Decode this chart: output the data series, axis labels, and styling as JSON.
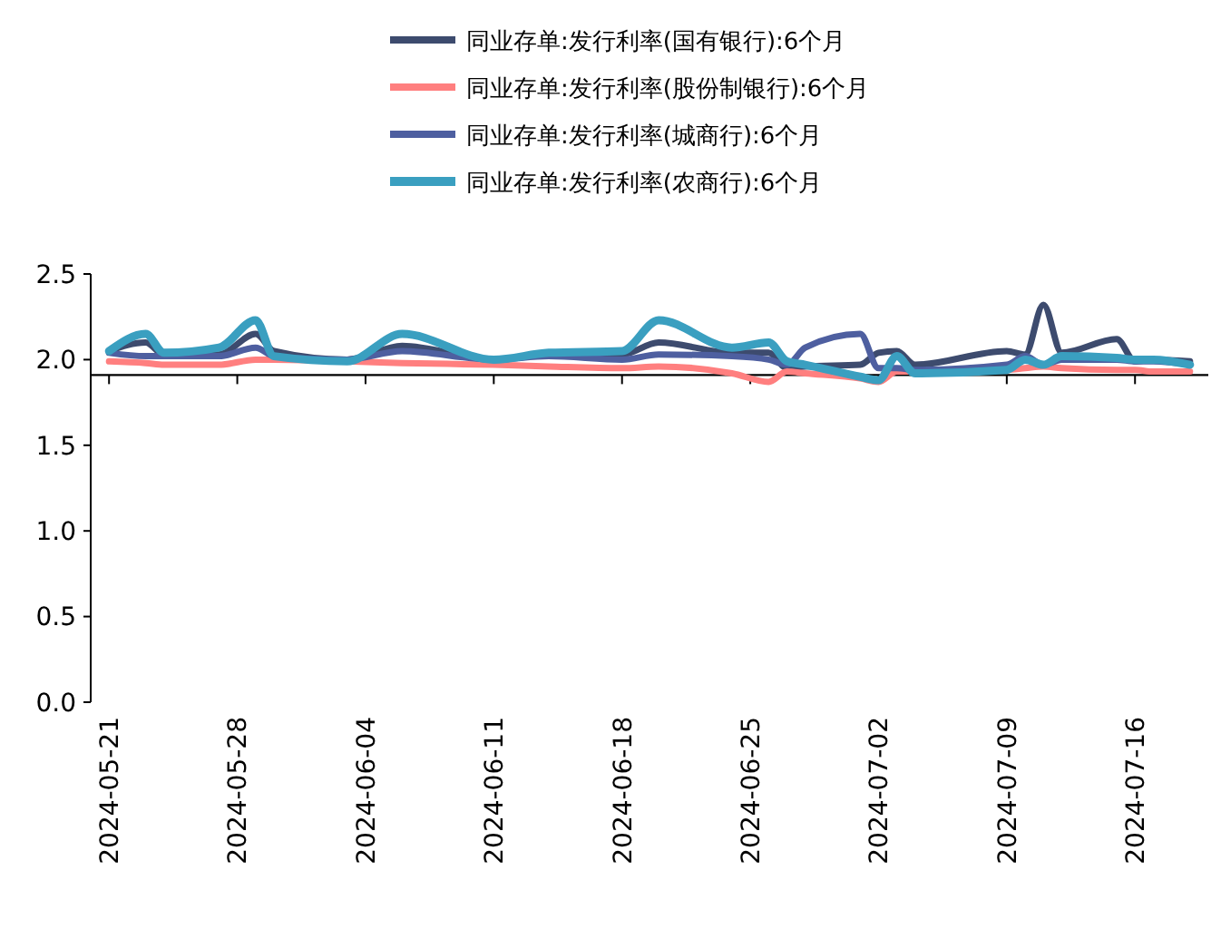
{
  "chart_data": {
    "type": "line",
    "x": [
      "2024-05-21",
      "2024-05-23",
      "2024-05-24",
      "2024-05-27",
      "2024-05-29",
      "2024-05-30",
      "2024-06-03",
      "2024-06-06",
      "2024-06-11",
      "2024-06-14",
      "2024-06-18",
      "2024-06-20",
      "2024-06-24",
      "2024-06-26",
      "2024-06-27",
      "2024-06-28",
      "2024-07-01",
      "2024-07-02",
      "2024-07-03",
      "2024-07-04",
      "2024-07-09",
      "2024-07-10",
      "2024-07-11",
      "2024-07-12",
      "2024-07-15",
      "2024-07-16",
      "2024-07-17",
      "2024-07-19"
    ],
    "series": [
      {
        "name": "同业存单:发行利率(国有银行):6个月",
        "color": "#3d4b6e",
        "values": [
          2.05,
          2.1,
          2.03,
          2.03,
          2.15,
          2.05,
          2.0,
          2.08,
          2.0,
          2.03,
          2.03,
          2.1,
          2.04,
          2.04,
          1.95,
          1.96,
          1.97,
          2.04,
          2.05,
          1.97,
          2.05,
          2.03,
          2.32,
          2.04,
          2.12,
          1.99,
          2.0,
          1.99
        ]
      },
      {
        "name": "同业存单:发行利率(股份制银行):6个月",
        "color": "#ff7f7f",
        "values": [
          1.99,
          1.98,
          1.97,
          1.97,
          2.0,
          2.0,
          1.99,
          1.98,
          1.97,
          1.96,
          1.95,
          1.96,
          1.92,
          1.87,
          1.93,
          1.92,
          1.89,
          1.87,
          1.93,
          1.93,
          1.94,
          1.95,
          1.96,
          1.95,
          1.94,
          1.94,
          1.93,
          1.93
        ]
      },
      {
        "name": "同业存单:发行利率(城商行):6个月",
        "color": "#4e5fa0",
        "values": [
          2.04,
          2.02,
          2.02,
          2.02,
          2.07,
          2.02,
          2.0,
          2.05,
          2.0,
          2.02,
          2.0,
          2.03,
          2.02,
          2.0,
          1.97,
          2.07,
          2.15,
          1.95,
          1.95,
          1.94,
          1.97,
          2.02,
          1.97,
          2.0,
          2.0,
          1.99,
          1.99,
          1.97
        ]
      },
      {
        "name": "同业存单:发行利率(农商行):6个月",
        "color": "#3a9fc0",
        "values": [
          2.05,
          2.15,
          2.04,
          2.07,
          2.23,
          2.02,
          1.99,
          2.15,
          2.0,
          2.04,
          2.05,
          2.23,
          2.07,
          2.1,
          1.99,
          1.97,
          1.9,
          1.88,
          2.02,
          1.92,
          1.94,
          2.0,
          1.97,
          2.02,
          2.01,
          2.0,
          2.0,
          1.97
        ]
      }
    ],
    "xlim": [
      "2024-05-20",
      "2024-07-20"
    ],
    "xticks": [
      "2024-05-21",
      "2024-05-28",
      "2024-06-04",
      "2024-06-11",
      "2024-06-18",
      "2024-06-25",
      "2024-07-02",
      "2024-07-09",
      "2024-07-16"
    ],
    "ylim": [
      0,
      2.5
    ],
    "yticks": [
      {
        "value": 0,
        "label": "0.0"
      },
      {
        "value": 0.5,
        "label": "0.5"
      },
      {
        "value": 1,
        "label": "1.0"
      },
      {
        "value": 1.5,
        "label": "1.5"
      },
      {
        "value": 2,
        "label": "2.0"
      },
      {
        "value": 2.5,
        "label": "2.5"
      }
    ],
    "ref_lines": [
      {
        "axis": "y",
        "value": 1.91,
        "color": "#000000"
      }
    ],
    "legend": "top",
    "grid": false,
    "marker": "none",
    "line_style": "solid"
  }
}
